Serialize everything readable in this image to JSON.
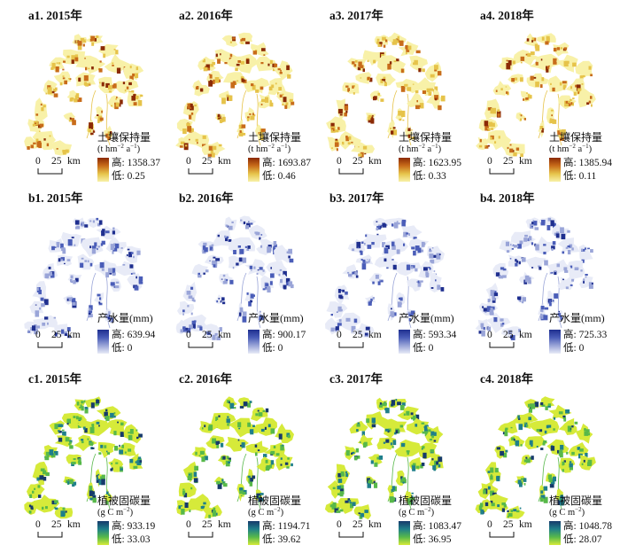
{
  "rows": [
    {
      "key": "soil",
      "legend_title": "土壤保持量",
      "unit_prefix": "(t hm",
      "unit_sup1": "−2",
      "unit_mid": " a",
      "unit_sup2": "−1",
      "unit_suffix": ")",
      "colors": [
        "#8b2a05",
        "#c86c1a",
        "#e6c34a",
        "#f8f1a8"
      ],
      "panels": [
        {
          "title": "a1. 2015年",
          "high": "高: 1358.37",
          "low": "低: 0.25"
        },
        {
          "title": "a2. 2016年",
          "high": "高: 1693.87",
          "low": "低: 0.46"
        },
        {
          "title": "a3. 2017年",
          "high": "高: 1623.95",
          "low": "低: 0.33"
        },
        {
          "title": "a4. 2018年",
          "high": "高: 1385.94",
          "low": "低: 0.11"
        }
      ]
    },
    {
      "key": "water",
      "legend_title": "产水量(mm)",
      "colors": [
        "#1f2f8f",
        "#4a5db8",
        "#9aa5d8",
        "#e8ebf7"
      ],
      "panels": [
        {
          "title": "b1. 2015年",
          "high": "高: 639.94",
          "low": "低: 0"
        },
        {
          "title": "b2. 2016年",
          "high": "高: 900.17",
          "low": "低: 0"
        },
        {
          "title": "b3. 2017年",
          "high": "高: 593.34",
          "low": "低: 0"
        },
        {
          "title": "b4. 2018年",
          "high": "高: 725.33",
          "low": "低: 0"
        }
      ]
    },
    {
      "key": "carbon",
      "legend_title": "植被固碳量",
      "unit_prefix": "(g C m",
      "unit_sup1": "−2",
      "unit_suffix": ")",
      "colors": [
        "#163a6b",
        "#1f7f8a",
        "#57b84a",
        "#d6ea3a"
      ],
      "panels": [
        {
          "title": "c1. 2015年",
          "high": "高: 933.19",
          "low": "低: 33.03"
        },
        {
          "title": "c2. 2016年",
          "high": "高: 1194.71",
          "low": "低: 39.62"
        },
        {
          "title": "c3. 2017年",
          "high": "高: 1083.47",
          "low": "低: 36.95"
        },
        {
          "title": "c4. 2018年",
          "high": "高: 1048.78",
          "low": "低: 28.07"
        }
      ]
    }
  ],
  "scalebar": {
    "zero": "0",
    "value": "25",
    "unit": "km"
  }
}
